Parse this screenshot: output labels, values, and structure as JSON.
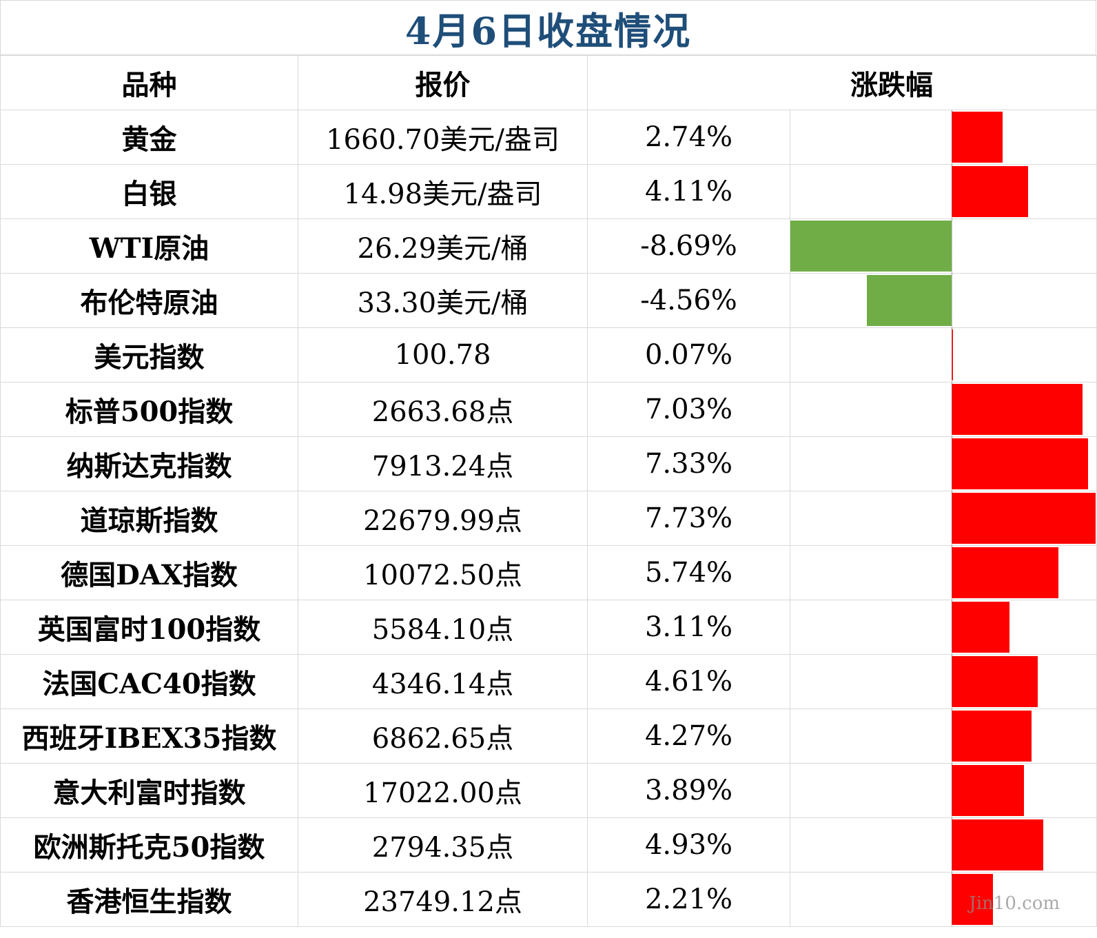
{
  "title": "4月6日收盘情况",
  "headers": {
    "name": "品种",
    "price": "报价",
    "change": "涨跌幅"
  },
  "colors": {
    "up": "#ff0000",
    "down": "#70ad47",
    "title": "#1f4e79"
  },
  "watermark": "Jin10.com",
  "chart_data": {
    "type": "bar",
    "orientation": "horizontal",
    "categories": [
      "黄金",
      "白银",
      "WTI原油",
      "布伦特原油",
      "美元指数",
      "标普500指数",
      "纳斯达克指数",
      "道琼斯指数",
      "德国DAX指数",
      "英国富时100指数",
      "法国CAC40指数",
      "西班牙IBEX35指数",
      "意大利富时指数",
      "欧洲斯托克50指数",
      "香港恒生指数"
    ],
    "values": [
      2.74,
      4.11,
      -8.69,
      -4.56,
      0.07,
      7.03,
      7.33,
      7.73,
      5.74,
      3.11,
      4.61,
      4.27,
      3.89,
      4.93,
      2.21
    ],
    "xlim": [
      -8.69,
      7.73
    ]
  },
  "rows": [
    {
      "name": "黄金",
      "price": "1660.70美元/盎司",
      "change": "2.74%"
    },
    {
      "name": "白银",
      "price": "14.98美元/盎司",
      "change": "4.11%"
    },
    {
      "name": "WTI原油",
      "price": "26.29美元/桶",
      "change": "-8.69%"
    },
    {
      "name": "布伦特原油",
      "price": "33.30美元/桶",
      "change": "-4.56%"
    },
    {
      "name": "美元指数",
      "price": "100.78",
      "change": "0.07%"
    },
    {
      "name": "标普500指数",
      "price": "2663.68点",
      "change": "7.03%"
    },
    {
      "name": "纳斯达克指数",
      "price": "7913.24点",
      "change": "7.33%"
    },
    {
      "name": "道琼斯指数",
      "price": "22679.99点",
      "change": "7.73%"
    },
    {
      "name": "德国DAX指数",
      "price": "10072.50点",
      "change": "5.74%"
    },
    {
      "name": "英国富时100指数",
      "price": "5584.10点",
      "change": "3.11%"
    },
    {
      "name": "法国CAC40指数",
      "price": "4346.14点",
      "change": "4.61%"
    },
    {
      "name": "西班牙IBEX35指数",
      "price": "6862.65点",
      "change": "4.27%"
    },
    {
      "name": "意大利富时指数",
      "price": "17022.00点",
      "change": "3.89%"
    },
    {
      "name": "欧洲斯托克50指数",
      "price": "2794.35点",
      "change": "4.93%"
    },
    {
      "name": "香港恒生指数",
      "price": "23749.12点",
      "change": "2.21%"
    }
  ]
}
